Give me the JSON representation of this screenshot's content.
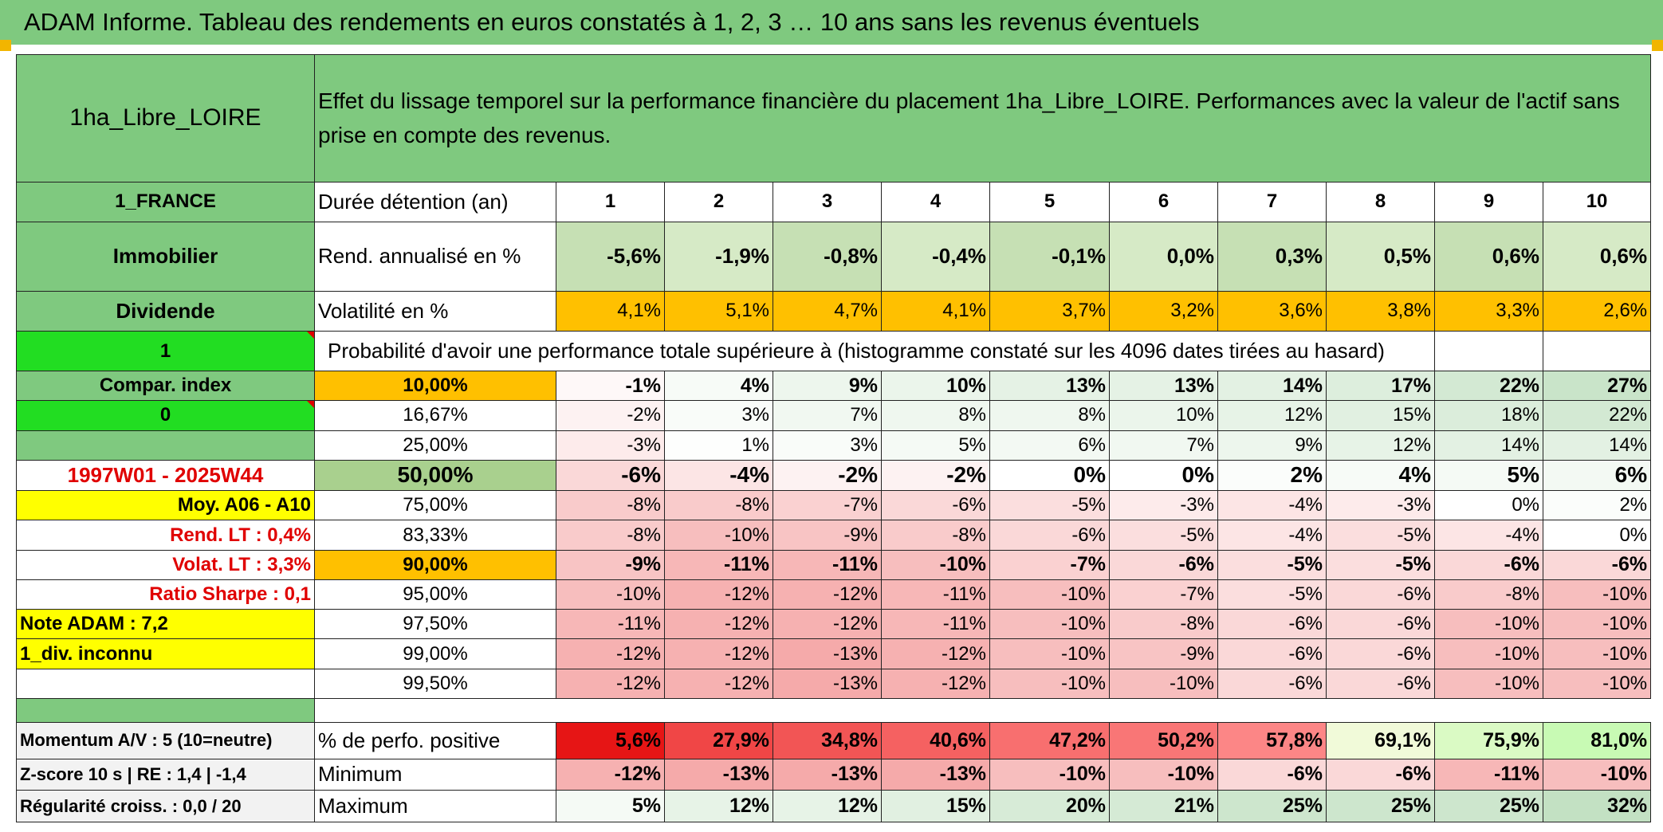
{
  "title": "ADAM Informe. Tableau des rendements en euros constatés à 1, 2, 3 … 10 ans sans les revenus éventuels",
  "colors": {
    "header_green": "#7fc97f",
    "bright_green": "#22dd22",
    "yellow": "#ffff00",
    "orange": "#ffc000",
    "red_text": "#e00000"
  },
  "side": {
    "name": "1ha_Libre_LOIRE",
    "country": "1_FRANCE",
    "asset_class": "Immobilier",
    "dividend_label": "Dividende",
    "value_1": "1",
    "compar_index": "Compar. index",
    "value_0": "0",
    "period": "1997W01 - 2025W44",
    "moy": "Moy. A06 - A10",
    "rend_lt_label": "Rend. LT :",
    "rend_lt_value": "0,4%",
    "volat_lt_label": "Volat. LT :",
    "volat_lt_value": "3,3%",
    "sharpe_label": "Ratio Sharpe :",
    "sharpe_value": "0,1",
    "note": "Note ADAM : 7,2",
    "div_note": "1_div. inconnu",
    "momentum": "Momentum A/V : 5 (10=neutre)",
    "zscore": "Z-score 10 s | RE : 1,4 | -1,4",
    "regularite": "Régularité croiss. : 0,0 / 20"
  },
  "description": "Effet du lissage temporel sur la performance financière du placement 1ha_Libre_LOIRE. Performances avec la valeur de l'actif sans prise en compte des revenus.",
  "duration_label": "Durée détention (an)",
  "years": [
    "1",
    "2",
    "3",
    "4",
    "5",
    "6",
    "7",
    "8",
    "9",
    "10"
  ],
  "rend_label": "Rend. annualisé en %",
  "rend": [
    "-5,6%",
    "-1,9%",
    "-0,8%",
    "-0,4%",
    "-0,1%",
    "0,0%",
    "0,3%",
    "0,5%",
    "0,6%",
    "0,6%"
  ],
  "vol_label": "Volatilité en %",
  "vol": [
    "4,1%",
    "5,1%",
    "4,7%",
    "4,1%",
    "3,7%",
    "3,2%",
    "3,6%",
    "3,8%",
    "3,3%",
    "2,6%"
  ],
  "prob_label": "Probabilité d'avoir une performance totale supérieure à (histogramme constaté sur les 4096 dates tirées au hasard)",
  "percentiles": [
    {
      "p": "10,00%",
      "v": [
        "-1%",
        "4%",
        "9%",
        "10%",
        "13%",
        "13%",
        "14%",
        "17%",
        "22%",
        "27%"
      ]
    },
    {
      "p": "16,67%",
      "v": [
        "-2%",
        "3%",
        "7%",
        "8%",
        "8%",
        "10%",
        "12%",
        "15%",
        "18%",
        "22%"
      ]
    },
    {
      "p": "25,00%",
      "v": [
        "-3%",
        "1%",
        "3%",
        "5%",
        "6%",
        "7%",
        "9%",
        "12%",
        "14%",
        "14%"
      ]
    },
    {
      "p": "50,00%",
      "v": [
        "-6%",
        "-4%",
        "-2%",
        "-2%",
        "0%",
        "0%",
        "2%",
        "4%",
        "5%",
        "6%"
      ]
    },
    {
      "p": "75,00%",
      "v": [
        "-8%",
        "-8%",
        "-7%",
        "-6%",
        "-5%",
        "-3%",
        "-4%",
        "-3%",
        "0%",
        "2%"
      ]
    },
    {
      "p": "83,33%",
      "v": [
        "-8%",
        "-10%",
        "-9%",
        "-8%",
        "-6%",
        "-5%",
        "-4%",
        "-5%",
        "-4%",
        "0%"
      ]
    },
    {
      "p": "90,00%",
      "v": [
        "-9%",
        "-11%",
        "-11%",
        "-10%",
        "-7%",
        "-6%",
        "-5%",
        "-5%",
        "-6%",
        "-6%"
      ]
    },
    {
      "p": "95,00%",
      "v": [
        "-10%",
        "-12%",
        "-12%",
        "-11%",
        "-10%",
        "-7%",
        "-5%",
        "-6%",
        "-8%",
        "-10%"
      ]
    },
    {
      "p": "97,50%",
      "v": [
        "-11%",
        "-12%",
        "-12%",
        "-11%",
        "-10%",
        "-8%",
        "-6%",
        "-6%",
        "-10%",
        "-10%"
      ]
    },
    {
      "p": "99,00%",
      "v": [
        "-12%",
        "-12%",
        "-13%",
        "-12%",
        "-10%",
        "-9%",
        "-6%",
        "-6%",
        "-10%",
        "-10%"
      ]
    },
    {
      "p": "99,50%",
      "v": [
        "-12%",
        "-12%",
        "-13%",
        "-12%",
        "-10%",
        "-10%",
        "-6%",
        "-6%",
        "-10%",
        "-10%"
      ]
    }
  ],
  "pos_label": "% de perfo. positive",
  "pos": [
    "5,6%",
    "27,9%",
    "34,8%",
    "40,6%",
    "47,2%",
    "50,2%",
    "57,8%",
    "69,1%",
    "75,9%",
    "81,0%"
  ],
  "min_label": "Minimum",
  "min": [
    "-12%",
    "-13%",
    "-13%",
    "-13%",
    "-10%",
    "-10%",
    "-6%",
    "-6%",
    "-11%",
    "-10%"
  ],
  "max_label": "Maximum",
  "max": [
    "5%",
    "12%",
    "12%",
    "15%",
    "20%",
    "21%",
    "25%",
    "25%",
    "25%",
    "32%"
  ]
}
